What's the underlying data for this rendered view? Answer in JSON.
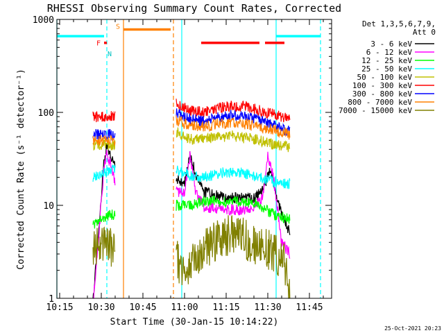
{
  "chart_data": {
    "type": "line",
    "title": "RHESSI Observing Summary Count Rates, Corrected",
    "xlabel": "Start Time (30-Jan-15 10:14:22)",
    "ylabel": "Corrected Count Rate (s⁻¹ detector⁻¹)",
    "y_scale": "log",
    "ylim": [
      1,
      1000
    ],
    "xlim": [
      "10:14",
      "11:53"
    ],
    "x_ticks": [
      "10:15",
      "10:30",
      "10:45",
      "11:00",
      "11:15",
      "11:30",
      "11:45"
    ],
    "y_ticks": [
      "1",
      "10",
      "100",
      "1000"
    ],
    "legend_position": "top-right",
    "legend_header": [
      "Det 1,3,5,6,7,9,",
      "Att 0"
    ],
    "timestamp": "25-Oct-2021 20:23",
    "flag_labels": {
      "flare": "F",
      "saa": "S",
      "night": "N"
    },
    "flag_bars": [
      {
        "flag": "night",
        "start": "10:14",
        "end": "10:31",
        "level": 660,
        "color": "#00ffff"
      },
      {
        "flag": "flare",
        "start": "10:31",
        "end": "10:32",
        "level": 560,
        "color": "#ff0000"
      },
      {
        "flag": "saa",
        "start": "10:38",
        "end": "10:55",
        "level": 780,
        "color": "#ff8000"
      },
      {
        "flag": "flare",
        "start": "11:06",
        "end": "11:27",
        "level": 560,
        "color": "#ff0000"
      },
      {
        "flag": "flare",
        "start": "11:29",
        "end": "11:36",
        "level": 560,
        "color": "#ff0000"
      },
      {
        "flag": "night",
        "start": "11:33",
        "end": "11:49",
        "level": 660,
        "color": "#00ffff"
      }
    ],
    "vlines": [
      {
        "time": "10:14",
        "style": "solid",
        "color": "#00ffff"
      },
      {
        "time": "10:32",
        "style": "dashed",
        "color": "#00ffff"
      },
      {
        "time": "10:38",
        "style": "solid",
        "color": "#ff8000"
      },
      {
        "time": "10:56",
        "style": "dashed",
        "color": "#ff8000"
      },
      {
        "time": "10:59",
        "style": "solid",
        "color": "#00ffff"
      },
      {
        "time": "11:33",
        "style": "solid",
        "color": "#00ffff"
      },
      {
        "time": "11:49",
        "style": "dashed",
        "color": "#00ffff"
      }
    ],
    "segments": [
      {
        "start": "10:27",
        "end": "10:35"
      },
      {
        "start": "10:57",
        "end": "11:38"
      }
    ],
    "series": [
      {
        "name": "3 - 6 keV",
        "color": "#000000",
        "seg1": [
          [
            "10:27",
            0.9
          ],
          [
            "10:31",
            30
          ],
          [
            "10:32",
            45
          ],
          [
            "10:33",
            38
          ],
          [
            "10:35",
            25
          ]
        ],
        "seg2": [
          [
            "10:57",
            19
          ],
          [
            "11:00",
            17
          ],
          [
            "11:02",
            35
          ],
          [
            "11:04",
            22
          ],
          [
            "11:07",
            14
          ],
          [
            "11:10",
            13
          ],
          [
            "11:15",
            12
          ],
          [
            "11:20",
            12
          ],
          [
            "11:25",
            12
          ],
          [
            "11:28",
            14
          ],
          [
            "11:31",
            25
          ],
          [
            "11:33",
            12
          ],
          [
            "11:36",
            7
          ],
          [
            "11:38",
            5
          ]
        ]
      },
      {
        "name": "6 - 12 keV",
        "color": "#ff00ff",
        "seg1": [
          [
            "10:27",
            0.8
          ],
          [
            "10:31",
            25
          ],
          [
            "10:32",
            35
          ],
          [
            "10:33",
            30
          ],
          [
            "10:35",
            18
          ]
        ],
        "seg2": [
          [
            "10:57",
            14
          ],
          [
            "11:00",
            14
          ],
          [
            "11:02",
            35
          ],
          [
            "11:04",
            14
          ],
          [
            "11:07",
            9.5
          ],
          [
            "11:10",
            9.5
          ],
          [
            "11:15",
            9
          ],
          [
            "11:20",
            9
          ],
          [
            "11:25",
            9.5
          ],
          [
            "11:28",
            12
          ],
          [
            "11:30",
            33
          ],
          [
            "11:32",
            20
          ],
          [
            "11:35",
            4
          ],
          [
            "11:38",
            3
          ]
        ]
      },
      {
        "name": "12 - 25 keV",
        "color": "#00ff00",
        "seg1": [
          [
            "10:27",
            6
          ],
          [
            "10:30",
            7.5
          ],
          [
            "10:35",
            8
          ]
        ],
        "seg2": [
          [
            "10:57",
            10
          ],
          [
            "11:02",
            10
          ],
          [
            "11:07",
            11
          ],
          [
            "11:12",
            11
          ],
          [
            "11:17",
            11
          ],
          [
            "11:22",
            11
          ],
          [
            "11:27",
            10
          ],
          [
            "11:32",
            8
          ],
          [
            "11:38",
            7
          ]
        ]
      },
      {
        "name": "25 - 50 keV",
        "color": "#00ffff",
        "seg1": [
          [
            "10:27",
            20
          ],
          [
            "10:31",
            22
          ],
          [
            "10:35",
            25
          ]
        ],
        "seg2": [
          [
            "10:57",
            24
          ],
          [
            "11:02",
            21
          ],
          [
            "11:07",
            20
          ],
          [
            "11:12",
            22
          ],
          [
            "11:17",
            23
          ],
          [
            "11:22",
            22
          ],
          [
            "11:27",
            20
          ],
          [
            "11:32",
            18
          ],
          [
            "11:38",
            17
          ]
        ]
      },
      {
        "name": "50 - 100 keV",
        "color": "#c0c000",
        "seg1": [
          [
            "10:27",
            45
          ],
          [
            "10:35",
            45
          ]
        ],
        "seg2": [
          [
            "10:57",
            62
          ],
          [
            "11:02",
            52
          ],
          [
            "11:07",
            52
          ],
          [
            "11:12",
            54
          ],
          [
            "11:17",
            56
          ],
          [
            "11:22",
            53
          ],
          [
            "11:27",
            50
          ],
          [
            "11:32",
            45
          ],
          [
            "11:38",
            42
          ]
        ]
      },
      {
        "name": "100 - 300 keV",
        "color": "#ff0000",
        "seg1": [
          [
            "10:27",
            90
          ],
          [
            "10:35",
            90
          ]
        ],
        "seg2": [
          [
            "10:57",
            125
          ],
          [
            "11:02",
            105
          ],
          [
            "11:07",
            100
          ],
          [
            "11:12",
            110
          ],
          [
            "11:17",
            118
          ],
          [
            "11:22",
            115
          ],
          [
            "11:27",
            105
          ],
          [
            "11:32",
            95
          ],
          [
            "11:38",
            85
          ]
        ]
      },
      {
        "name": "300 - 800 keV",
        "color": "#0000ff",
        "seg1": [
          [
            "10:27",
            58
          ],
          [
            "10:35",
            57
          ]
        ],
        "seg2": [
          [
            "10:57",
            98
          ],
          [
            "11:02",
            85
          ],
          [
            "11:07",
            80
          ],
          [
            "11:12",
            88
          ],
          [
            "11:17",
            93
          ],
          [
            "11:22",
            90
          ],
          [
            "11:27",
            82
          ],
          [
            "11:32",
            72
          ],
          [
            "11:38",
            62
          ]
        ]
      },
      {
        "name": "800 - 7000 keV",
        "color": "#ff8000",
        "seg1": [
          [
            "10:27",
            50
          ],
          [
            "10:35",
            50
          ]
        ],
        "seg2": [
          [
            "10:57",
            82
          ],
          [
            "11:02",
            72
          ],
          [
            "11:07",
            70
          ],
          [
            "11:12",
            75
          ],
          [
            "11:17",
            78
          ],
          [
            "11:22",
            75
          ],
          [
            "11:27",
            70
          ],
          [
            "11:32",
            65
          ],
          [
            "11:38",
            58
          ]
        ]
      },
      {
        "name": "7000 - 15000 keV",
        "color": "#808000",
        "seg1": [
          [
            "10:27",
            3.5
          ],
          [
            "10:35",
            3.5
          ]
        ],
        "seg2": [
          [
            "10:57",
            2.8
          ],
          [
            "11:00",
            1.8
          ],
          [
            "11:04",
            2.6
          ],
          [
            "11:08",
            3.6
          ],
          [
            "11:12",
            4.2
          ],
          [
            "11:16",
            4.8
          ],
          [
            "11:20",
            4.8
          ],
          [
            "11:24",
            4.0
          ],
          [
            "11:28",
            3.5
          ],
          [
            "11:32",
            3.2
          ],
          [
            "11:36",
            2.5
          ],
          [
            "11:38",
            1.0
          ]
        ]
      }
    ]
  }
}
